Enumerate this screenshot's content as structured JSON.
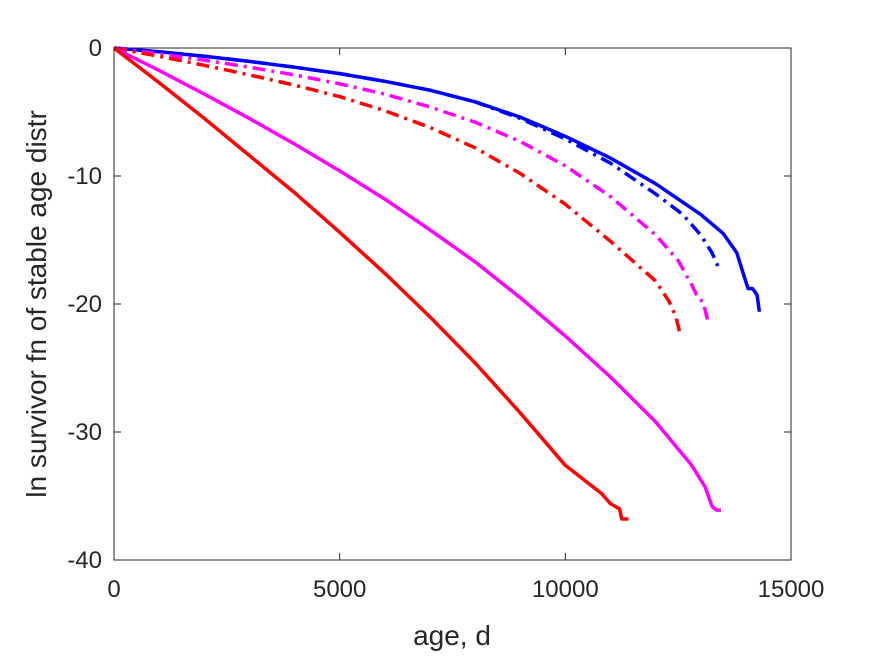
{
  "chart_data": {
    "type": "line",
    "xlabel": "age, d",
    "ylabel": "ln survivor fn of stable age distr",
    "xlim": [
      0,
      15000
    ],
    "ylim": [
      -40,
      0
    ],
    "xticks": [
      0,
      5000,
      10000,
      15000
    ],
    "xtick_labels": [
      "0",
      "5000",
      "10000",
      "15000"
    ],
    "yticks": [
      0,
      -10,
      -20,
      -30,
      -40
    ],
    "ytick_labels": [
      "0",
      "-10",
      "-20",
      "-30",
      "-40"
    ],
    "grid": false,
    "series": [
      {
        "color": "#0000ff",
        "style": "solid",
        "x": [
          0,
          1000,
          2000,
          3000,
          4000,
          5000,
          6000,
          7000,
          8000,
          9000,
          10000,
          11000,
          12000,
          13000,
          13500,
          13800,
          13950,
          14050,
          14150,
          14250,
          14300
        ],
        "y": [
          0,
          -0.3,
          -0.65,
          -1.05,
          -1.5,
          -2.0,
          -2.6,
          -3.3,
          -4.2,
          -5.4,
          -6.9,
          -8.6,
          -10.6,
          -13.0,
          -14.5,
          -16.0,
          -17.7,
          -18.8,
          -18.8,
          -19.3,
          -20.6
        ]
      },
      {
        "color": "#0000ff",
        "style": "dashdot",
        "x": [
          0,
          1000,
          2000,
          3000,
          4000,
          5000,
          6000,
          7000,
          8000,
          9000,
          10000,
          11000,
          12000,
          12600,
          13000,
          13250,
          13400
        ],
        "y": [
          0,
          -0.3,
          -0.65,
          -1.05,
          -1.5,
          -2.0,
          -2.6,
          -3.3,
          -4.2,
          -5.5,
          -7.1,
          -9.0,
          -11.4,
          -13.0,
          -14.6,
          -16.0,
          -17.2
        ]
      },
      {
        "color": "#ff00ff",
        "style": "dashdot",
        "x": [
          0,
          1000,
          2000,
          3000,
          4000,
          5000,
          6000,
          7000,
          8000,
          9000,
          10000,
          11000,
          12000,
          12500,
          12800,
          12950,
          13050,
          13150
        ],
        "y": [
          0,
          -0.45,
          -0.95,
          -1.5,
          -2.1,
          -2.8,
          -3.6,
          -4.6,
          -5.8,
          -7.3,
          -9.2,
          -11.6,
          -14.6,
          -16.6,
          -18.5,
          -19.6,
          -19.8,
          -21.2
        ]
      },
      {
        "color": "#ff0000",
        "style": "dashdot",
        "x": [
          0,
          1000,
          2000,
          3000,
          4000,
          5000,
          6000,
          7000,
          8000,
          9000,
          10000,
          11000,
          12000,
          12300,
          12450,
          12550
        ],
        "y": [
          0,
          -0.65,
          -1.35,
          -2.1,
          -2.9,
          -3.8,
          -4.9,
          -6.2,
          -7.8,
          -9.8,
          -12.2,
          -15.1,
          -18.2,
          -19.8,
          -21.0,
          -22.4
        ]
      },
      {
        "color": "#ff00ff",
        "style": "solid",
        "x": [
          0,
          1000,
          2000,
          3000,
          4000,
          5000,
          6000,
          7000,
          8000,
          9000,
          10000,
          11000,
          12000,
          12800,
          13100,
          13250,
          13350,
          13450
        ],
        "y": [
          0,
          -1.75,
          -3.6,
          -5.5,
          -7.5,
          -9.6,
          -11.8,
          -14.2,
          -16.7,
          -19.5,
          -22.5,
          -25.7,
          -29.2,
          -32.6,
          -34.3,
          -35.8,
          -36.1,
          -36.1
        ]
      },
      {
        "color": "#ff0000",
        "style": "solid",
        "x": [
          0,
          1000,
          2000,
          3000,
          4000,
          5000,
          6000,
          7000,
          8000,
          9000,
          10000,
          10800,
          11000,
          11200,
          11250,
          11400
        ],
        "y": [
          0,
          -2.7,
          -5.5,
          -8.4,
          -11.3,
          -14.4,
          -17.6,
          -21.0,
          -24.6,
          -28.5,
          -32.6,
          -34.8,
          -35.6,
          -36.0,
          -36.8,
          -36.8
        ]
      }
    ]
  }
}
